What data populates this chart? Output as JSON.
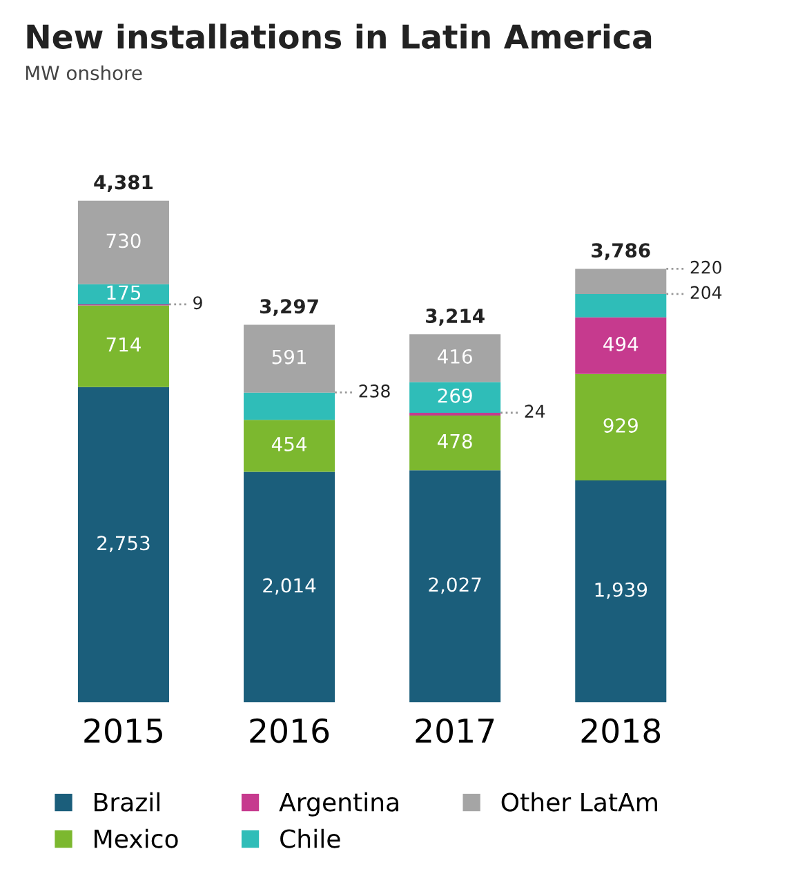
{
  "chart_data": {
    "type": "bar",
    "stacked": true,
    "title": "New installations in Latin America",
    "subtitle": "MW onshore",
    "categories": [
      "2015",
      "2016",
      "2017",
      "2018"
    ],
    "series": [
      {
        "name": "Brazil",
        "color": "#1b5e7b",
        "values": [
          2753,
          2014,
          2027,
          1939
        ],
        "value_labels": [
          "2,753",
          "2,014",
          "2,027",
          "1,939"
        ]
      },
      {
        "name": "Mexico",
        "color": "#7cb82f",
        "values": [
          714,
          454,
          478,
          929
        ],
        "value_labels": [
          "714",
          "454",
          "478",
          "929"
        ]
      },
      {
        "name": "Argentina",
        "color": "#c63a8e",
        "values": [
          9,
          0,
          24,
          494
        ],
        "value_labels": [
          "9",
          null,
          "24",
          "494"
        ]
      },
      {
        "name": "Chile",
        "color": "#2fbdb8",
        "values": [
          175,
          238,
          269,
          204
        ],
        "value_labels": [
          "175",
          "238",
          "269",
          "204"
        ]
      },
      {
        "name": "Other LatAm",
        "color": "#a5a5a5",
        "values": [
          730,
          591,
          416,
          220
        ],
        "value_labels": [
          "730",
          "591",
          "416",
          "220"
        ]
      }
    ],
    "totals": [
      "4,381",
      "3,297",
      "3,214",
      "3,786"
    ],
    "legend": "bottom",
    "grid": false,
    "tick_labels": "x"
  }
}
